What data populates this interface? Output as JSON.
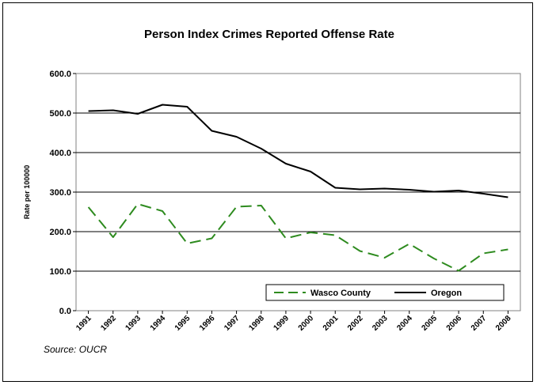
{
  "chart_data": {
    "type": "line",
    "title": "Person Index Crimes Reported Offense Rate",
    "xlabel": "",
    "ylabel": "Rate per 100000",
    "categories": [
      "1991",
      "1992",
      "1993",
      "1994",
      "1995",
      "1996",
      "1997",
      "1998",
      "1999",
      "2000",
      "2001",
      "2002",
      "2003",
      "2004",
      "2005",
      "2006",
      "2007",
      "2008"
    ],
    "ylim": [
      0,
      600
    ],
    "yticks": [
      "0.0",
      "100.0",
      "200.0",
      "300.0",
      "400.0",
      "500.0",
      "600.0"
    ],
    "grid": "horizontal",
    "legend_position": "bottom-right",
    "series": [
      {
        "name": "Wasco County",
        "color": "#2e8b1f",
        "style": "dashed",
        "values": [
          262,
          186,
          270,
          252,
          170,
          183,
          263,
          266,
          183,
          198,
          191,
          151,
          134,
          169,
          132,
          101,
          145,
          155
        ]
      },
      {
        "name": "Oregon",
        "color": "#000000",
        "style": "solid",
        "values": [
          505,
          507,
          498,
          521,
          516,
          455,
          440,
          410,
          372,
          352,
          311,
          307,
          309,
          306,
          301,
          304,
          296,
          287
        ]
      }
    ],
    "source": "Source: OUCR"
  }
}
